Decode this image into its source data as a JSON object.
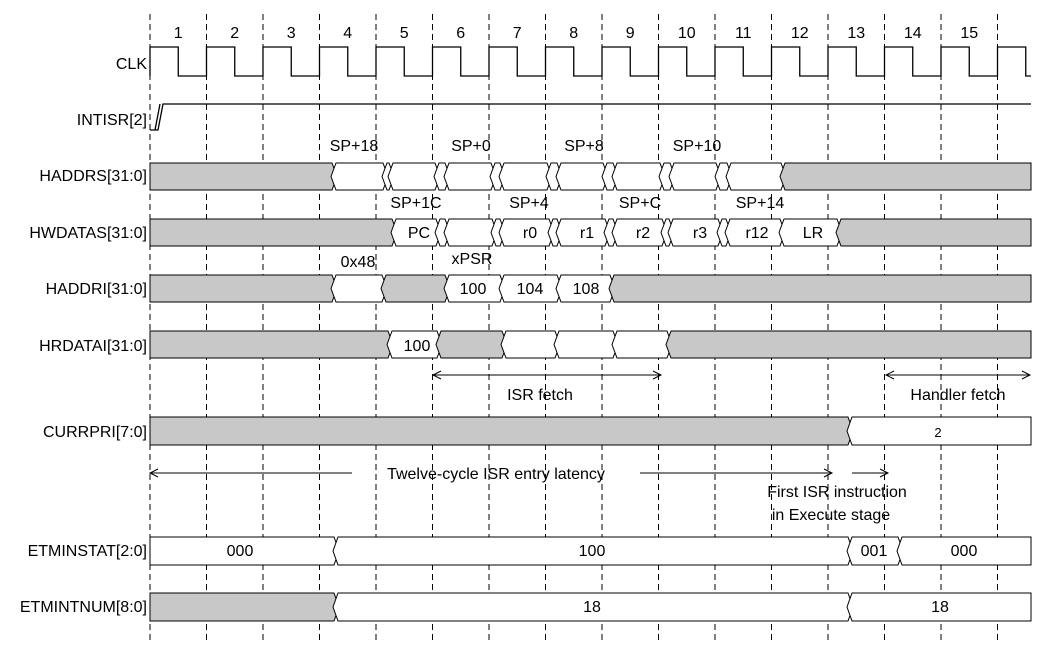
{
  "diagram": {
    "cycle_labels": [
      "1",
      "2",
      "3",
      "4",
      "5",
      "6",
      "7",
      "8",
      "9",
      "10",
      "11",
      "12",
      "13",
      "14",
      "15"
    ],
    "signals": {
      "clk": "CLK",
      "intisr": "INTISR[2]",
      "haddrs": "HADDRS[31:0]",
      "hwdatas": "HWDATAS[31:0]",
      "haddri": "HADDRI[31:0]",
      "hrdatai": "HRDATAI[31:0]",
      "currpri": "CURRPRI[7:0]",
      "etminstat": "ETMINSTAT[2:0]",
      "etmintnum": "ETMINTNUM[8:0]"
    },
    "haddrs_labels": [
      "SP+18",
      "SP+0",
      "SP+8",
      "SP+10"
    ],
    "hwdatas_labels": [
      "SP+1C",
      "SP+4",
      "SP+C",
      "SP+14"
    ],
    "hwdatas_values": [
      "PC",
      "r0",
      "r1",
      "r2",
      "r3",
      "r12",
      "LR"
    ],
    "haddri_labels": [
      "0x48",
      "xPSR"
    ],
    "haddri_values": [
      "100",
      "104",
      "108"
    ],
    "hrdatai_value": "100",
    "currpri_value": "2",
    "etminstat_values": [
      "000",
      "100",
      "001",
      "000"
    ],
    "etmintnum_values": [
      "18",
      "18"
    ],
    "annotations": {
      "isr_fetch": "ISR fetch",
      "handler_fetch": "Handler fetch",
      "latency": "Twelve-cycle ISR entry latency",
      "first_isr_line1": "First ISR instruction",
      "first_isr_line2": "in Execute stage"
    },
    "colors": {
      "ink": "#000000",
      "bus_fill": "#c8c8c8",
      "background": "#ffffff"
    }
  }
}
